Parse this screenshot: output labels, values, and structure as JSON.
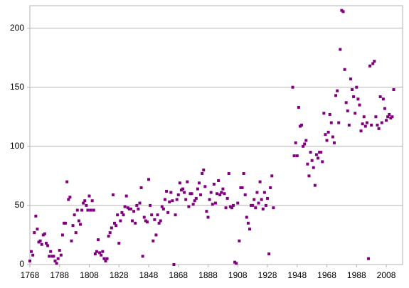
{
  "chart_data": {
    "type": "scatter",
    "x": [
      1768,
      1769,
      1770,
      1771,
      1772,
      1773,
      1774,
      1775,
      1776,
      1777,
      1778,
      1779,
      1780,
      1781,
      1782,
      1783,
      1784,
      1785,
      1786,
      1787,
      1788,
      1789,
      1790,
      1791,
      1792,
      1793,
      1794,
      1795,
      1796,
      1797,
      1798,
      1799,
      1800,
      1801,
      1802,
      1803,
      1804,
      1805,
      1806,
      1807,
      1808,
      1809,
      1810,
      1811,
      1812,
      1813,
      1814,
      1815,
      1816,
      1817,
      1818,
      1819,
      1820,
      1821,
      1822,
      1823,
      1824,
      1825,
      1826,
      1827,
      1828,
      1829,
      1830,
      1831,
      1832,
      1833,
      1834,
      1835,
      1836,
      1837,
      1838,
      1839,
      1840,
      1841,
      1842,
      1843,
      1844,
      1845,
      1846,
      1847,
      1848,
      1849,
      1850,
      1851,
      1852,
      1853,
      1854,
      1855,
      1856,
      1857,
      1858,
      1859,
      1860,
      1861,
      1862,
      1863,
      1864,
      1865,
      1866,
      1867,
      1868,
      1869,
      1870,
      1871,
      1872,
      1873,
      1874,
      1875,
      1876,
      1877,
      1878,
      1879,
      1880,
      1881,
      1882,
      1883,
      1884,
      1885,
      1886,
      1887,
      1888,
      1889,
      1890,
      1891,
      1892,
      1893,
      1894,
      1895,
      1896,
      1897,
      1898,
      1899,
      1900,
      1901,
      1902,
      1903,
      1904,
      1905,
      1906,
      1907,
      1908,
      1909,
      1910,
      1911,
      1912,
      1913,
      1914,
      1915,
      1916,
      1917,
      1918,
      1919,
      1920,
      1921,
      1922,
      1923,
      1924,
      1925,
      1926,
      1927,
      1928,
      1929,
      1930,
      1931,
      1932,
      1945,
      1946,
      1947,
      1948,
      1949,
      1950,
      1951,
      1952,
      1953,
      1954,
      1955,
      1956,
      1957,
      1958,
      1959,
      1960,
      1961,
      1962,
      1963,
      1964,
      1965,
      1966,
      1967,
      1968,
      1969,
      1970,
      1971,
      1972,
      1973,
      1974,
      1975,
      1976,
      1977,
      1978,
      1979,
      1980,
      1981,
      1982,
      1983,
      1984,
      1985,
      1986,
      1987,
      1988,
      1989,
      1990,
      1991,
      1992,
      1993,
      1994,
      1995,
      1996,
      1997,
      1998,
      1999,
      2000,
      2001,
      2002,
      2003,
      2004,
      2005,
      2006,
      2007,
      2008,
      2009,
      2010,
      2011,
      2012,
      2013
    ],
    "values": [
      3,
      11,
      8,
      27,
      41,
      30,
      19,
      20,
      17,
      25,
      26,
      18,
      16,
      7,
      11,
      7,
      7,
      3,
      1,
      5,
      12,
      8,
      25,
      35,
      35,
      70,
      55,
      57,
      20,
      33,
      42,
      27,
      46,
      37,
      34,
      46,
      52,
      54,
      50,
      46,
      58,
      46,
      54,
      46,
      9,
      11,
      21,
      10,
      8,
      11,
      5,
      3,
      5,
      24,
      27,
      31,
      59,
      35,
      33,
      42,
      18,
      37,
      44,
      42,
      49,
      58,
      48,
      47,
      47,
      37,
      45,
      35,
      50,
      47,
      52,
      65,
      7,
      40,
      37,
      36,
      72,
      50,
      42,
      20,
      38,
      25,
      42,
      35,
      37,
      49,
      47,
      55,
      62,
      44,
      53,
      61,
      54,
      0,
      42,
      55,
      59,
      69,
      63,
      64,
      61,
      55,
      70,
      49,
      60,
      60,
      51,
      54,
      56,
      64,
      69,
      59,
      77,
      80,
      66,
      45,
      40,
      55,
      61,
      51,
      68,
      52,
      60,
      71,
      59,
      61,
      64,
      60,
      48,
      56,
      77,
      49,
      48,
      50,
      2,
      1,
      52,
      20,
      65,
      65,
      77,
      59,
      40,
      35,
      30,
      50,
      50,
      55,
      48,
      61,
      52,
      70,
      55,
      47,
      61,
      50,
      56,
      9,
      65,
      75,
      48,
      150,
      92,
      103,
      92,
      133,
      117,
      118,
      100,
      102,
      105,
      85,
      75,
      95,
      88,
      82,
      67,
      93,
      90,
      95,
      95,
      87,
      128,
      110,
      105,
      112,
      127,
      120,
      108,
      103,
      143,
      147,
      120,
      182,
      215,
      214,
      165,
      137,
      130,
      118,
      157,
      148,
      142,
      128,
      150,
      140,
      135,
      113,
      119,
      125,
      117,
      120,
      5,
      168,
      118,
      170,
      172,
      125,
      118,
      115,
      142,
      120,
      140,
      132,
      122,
      125,
      127,
      124,
      125,
      148
    ],
    "color": "#800080",
    "xlim": [
      1768,
      2019
    ],
    "xticks": [
      1768,
      1788,
      1808,
      1828,
      1848,
      1868,
      1888,
      1908,
      1928,
      1948,
      1968,
      1988,
      2008
    ],
    "ylim": [
      0,
      219
    ],
    "yticks": [
      0,
      50,
      100,
      150,
      200
    ],
    "grid": true
  }
}
